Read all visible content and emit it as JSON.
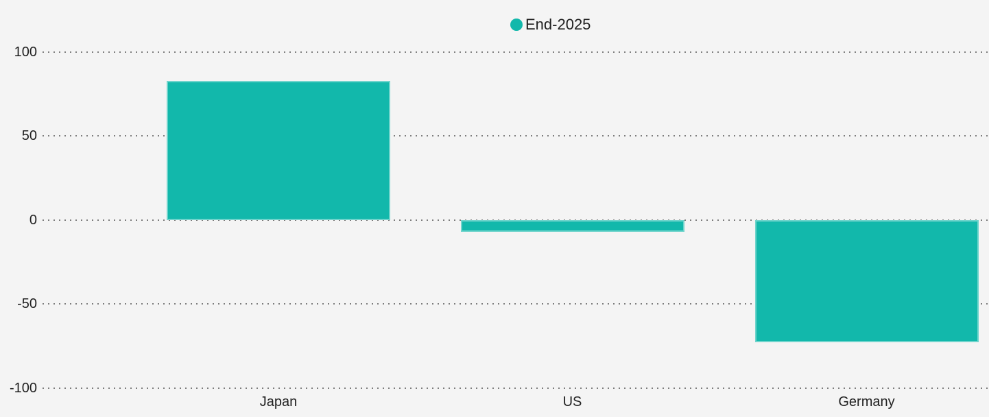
{
  "page": {
    "background_color": "#f4f4f4",
    "text_color": "#212121"
  },
  "legend": {
    "position": "top-center",
    "items": [
      {
        "label": "End-2025",
        "marker": "circle",
        "color": "#12b8ab"
      }
    ]
  },
  "chart_data": {
    "type": "bar",
    "title": "",
    "categories": [
      "Japan",
      "US",
      "Germany"
    ],
    "series": [
      {
        "name": "End-2025",
        "color": "#12b8ab",
        "values": [
          83,
          -7,
          -73
        ]
      }
    ],
    "xlabel": "",
    "ylabel": "",
    "ylim": [
      -100,
      100
    ],
    "yticks": [
      100,
      50,
      0,
      -50,
      -100
    ],
    "grid": {
      "horizontal": true,
      "style": "dotted",
      "color": "#686868"
    },
    "legend_position": "top-center",
    "plot_background": "#f4f4f4"
  }
}
